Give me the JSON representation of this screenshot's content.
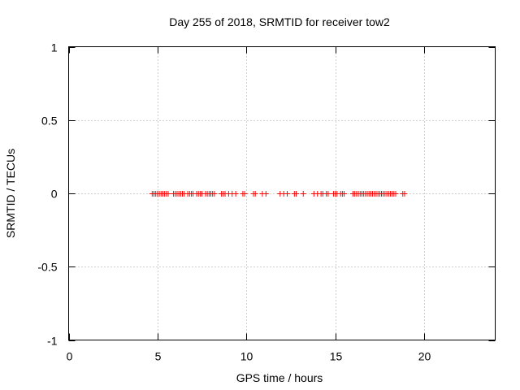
{
  "chart_data": {
    "type": "scatter",
    "title": "Day 255 of 2018, SRMTID for receiver tow2",
    "xlabel": "GPS time / hours",
    "ylabel": "SRMTID / TECUs",
    "xlim": [
      0,
      24
    ],
    "ylim": [
      -1,
      1
    ],
    "xticks": [
      0,
      5,
      10,
      15,
      20
    ],
    "xtick_labels": [
      "0",
      "5",
      "10",
      "15",
      "20"
    ],
    "yticks": [
      -1,
      -0.5,
      0,
      0.5,
      1
    ],
    "ytick_labels": [
      "-1",
      "-0.5",
      "0",
      "0.5",
      "1"
    ],
    "grid": true,
    "marker": "+",
    "series": [
      {
        "name": "SRMTID",
        "color": "#ff0000",
        "x": [
          4.7,
          4.8,
          4.9,
          5.0,
          5.1,
          5.2,
          5.3,
          5.4,
          5.5,
          5.6,
          5.9,
          6.0,
          6.1,
          6.2,
          6.3,
          6.4,
          6.5,
          6.7,
          6.8,
          6.9,
          7.0,
          7.2,
          7.3,
          7.4,
          7.5,
          7.7,
          7.8,
          7.9,
          8.0,
          8.1,
          8.2,
          8.6,
          8.7,
          8.8,
          9.0,
          9.2,
          9.4,
          9.8,
          9.9,
          10.4,
          10.5,
          10.9,
          11.1,
          11.9,
          12.1,
          12.3,
          12.7,
          12.8,
          13.2,
          13.8,
          14.0,
          14.2,
          14.3,
          14.5,
          14.6,
          14.9,
          15.0,
          15.1,
          15.3,
          15.4,
          15.5,
          16.0,
          16.1,
          16.2,
          16.3,
          16.4,
          16.5,
          16.6,
          16.7,
          16.8,
          16.9,
          17.0,
          17.1,
          17.2,
          17.3,
          17.4,
          17.5,
          17.6,
          17.7,
          17.8,
          17.9,
          18.0,
          18.1,
          18.2,
          18.3,
          18.4,
          18.8,
          18.9
        ],
        "y": [
          0,
          0,
          0,
          0,
          0,
          0,
          0,
          0,
          0,
          0,
          0,
          0,
          0,
          0,
          0,
          0,
          0,
          0,
          0,
          0,
          0,
          0,
          0,
          0,
          0,
          0,
          0,
          0,
          0,
          0,
          0,
          0,
          0,
          0,
          0,
          0,
          0,
          0,
          0,
          0,
          0,
          0,
          0,
          0,
          0,
          0,
          0,
          0,
          0,
          0,
          0,
          0,
          0,
          0,
          0,
          0,
          0,
          0,
          0,
          0,
          0,
          0,
          0,
          0,
          0,
          0,
          0,
          0,
          0,
          0,
          0,
          0,
          0,
          0,
          0,
          0,
          0,
          0,
          0,
          0,
          0,
          0,
          0,
          0,
          0,
          0,
          0,
          0
        ]
      }
    ]
  }
}
